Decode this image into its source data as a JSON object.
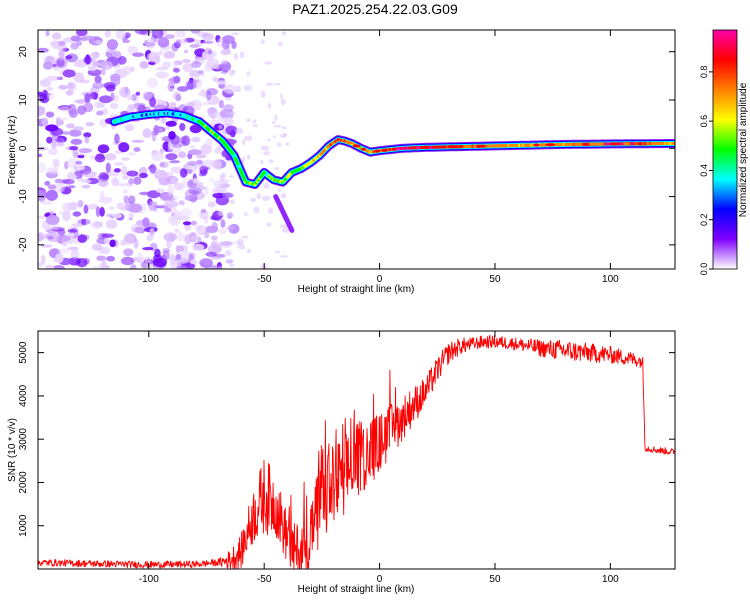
{
  "title": "PAZ1.2025.254.22.03.G09",
  "chart_data": [
    {
      "type": "heatmap",
      "name": "spectrogram",
      "xlabel": "Height of straight line (km)",
      "ylabel": "Frequency (Hz)",
      "xlim": [
        -148,
        128
      ],
      "ylim": [
        -25,
        24.5
      ],
      "x_ticks": [
        -100,
        -50,
        0,
        50,
        100
      ],
      "y_ticks": [
        -20,
        -10,
        0,
        10,
        20
      ],
      "colorbar": {
        "label": "Normalized spectral amplitude",
        "range": [
          0,
          0.97
        ],
        "ticks": [
          0.0,
          0.2,
          0.4,
          0.6,
          0.8
        ],
        "colors": [
          "#ffffff",
          "#7f00ff",
          "#0000ff",
          "#00ffff",
          "#00ff00",
          "#ffff00",
          "#ff7f00",
          "#ff0000",
          "#ff00aa"
        ]
      },
      "ridge": {
        "x": [
          -115,
          -108,
          -100,
          -92,
          -85,
          -78,
          -73,
          -68,
          -63,
          -58,
          -54,
          -50,
          -46,
          -42,
          -38,
          -34,
          -30,
          -26,
          -22,
          -18,
          -15,
          -12,
          -8,
          -4,
          0,
          10,
          20,
          40,
          60,
          80,
          100,
          128
        ],
        "y": [
          5.5,
          6.5,
          7.0,
          7.3,
          6.8,
          5.5,
          3.5,
          1.5,
          -1.5,
          -7.0,
          -7.5,
          -5.0,
          -6.5,
          -7.0,
          -5.0,
          -4.2,
          -3.0,
          -1.5,
          0.5,
          1.8,
          1.5,
          1.0,
          0.0,
          -0.8,
          -0.5,
          0.0,
          0.2,
          0.4,
          0.6,
          0.8,
          0.9,
          1.0
        ],
        "amplitude": [
          0.35,
          0.3,
          0.25,
          0.25,
          0.3,
          0.4,
          0.45,
          0.45,
          0.4,
          0.45,
          0.5,
          0.4,
          0.45,
          0.5,
          0.45,
          0.5,
          0.55,
          0.6,
          0.65,
          0.75,
          0.7,
          0.6,
          0.55,
          0.65,
          0.7,
          0.85,
          0.85,
          0.7,
          0.6,
          0.65,
          0.9,
          0.6
        ]
      },
      "branch": {
        "x": [
          -45,
          -42,
          -38
        ],
        "y": [
          -10,
          -13,
          -17
        ]
      }
    },
    {
      "type": "line",
      "name": "snr",
      "xlabel": "Height of straight line (km)",
      "ylabel": "SNR (10 * v/v)",
      "xlim": [
        -148,
        128
      ],
      "ylim": [
        0,
        5500
      ],
      "x_ticks": [
        -100,
        -50,
        0,
        50,
        100
      ],
      "y_ticks": [
        1000,
        2000,
        3000,
        4000,
        5000
      ],
      "color": "#ff0000",
      "trend": {
        "x": [
          -148,
          -120,
          -100,
          -80,
          -70,
          -65,
          -60,
          -55,
          -50,
          -45,
          -40,
          -35,
          -30,
          -25,
          -20,
          -15,
          -10,
          -5,
          0,
          5,
          10,
          15,
          20,
          25,
          30,
          35,
          40,
          45,
          50,
          60,
          70,
          80,
          90,
          100,
          110,
          114,
          115,
          120,
          128
        ],
        "y": [
          150,
          120,
          100,
          110,
          150,
          200,
          400,
          1200,
          1700,
          1500,
          700,
          300,
          800,
          1500,
          1900,
          2200,
          2500,
          2700,
          2900,
          3200,
          3500,
          3800,
          4100,
          4600,
          5000,
          5150,
          5200,
          5250,
          5250,
          5200,
          5100,
          5050,
          5000,
          4950,
          4850,
          4800,
          2800,
          2750,
          2700
        ]
      },
      "noise": {
        "x": [
          -148,
          -70,
          -60,
          -50,
          -40,
          -30,
          -20,
          -10,
          0,
          20,
          40,
          60,
          80,
          100,
          114,
          115,
          128
        ],
        "y": [
          80,
          80,
          400,
          900,
          600,
          900,
          1000,
          900,
          700,
          350,
          150,
          150,
          250,
          200,
          150,
          80,
          80
        ]
      }
    }
  ]
}
